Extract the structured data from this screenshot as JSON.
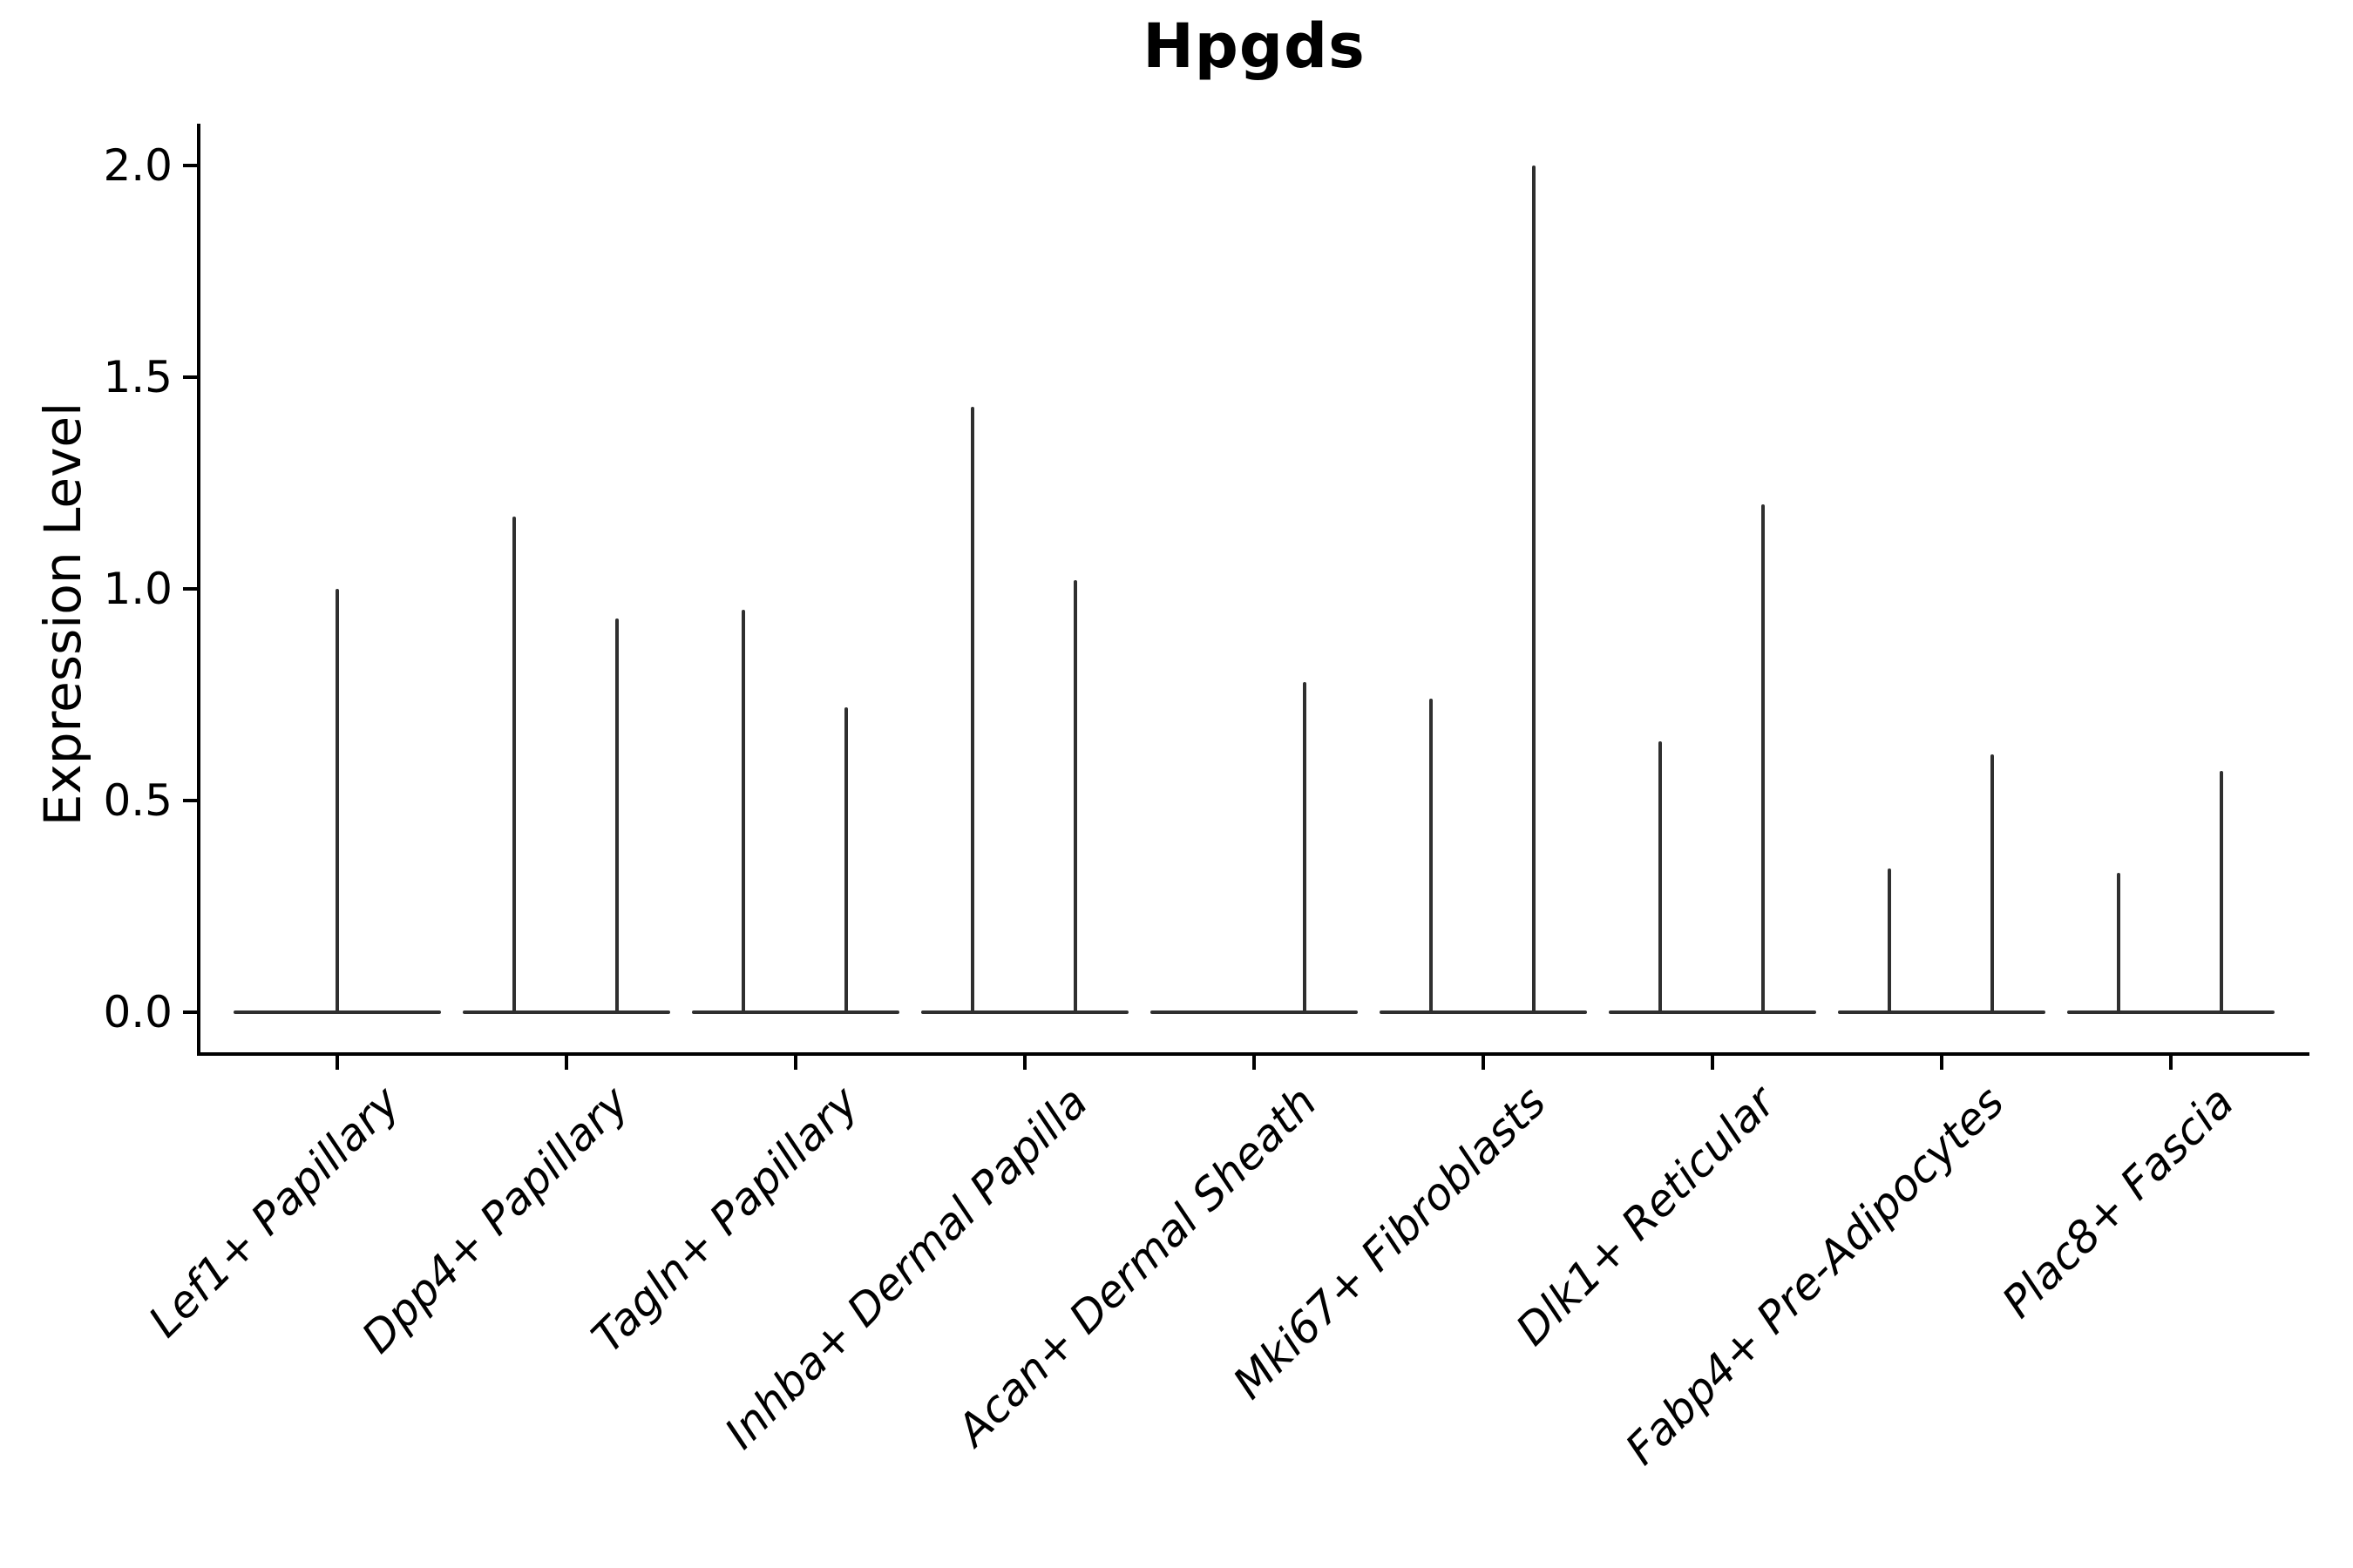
{
  "figure": {
    "background": "#ffffff"
  },
  "chart_data": {
    "type": "violin",
    "title": "Hpgds",
    "ylabel": "Expression Level",
    "xlabel": "",
    "grid": false,
    "legend": null,
    "ylim": [
      -0.1,
      2.1
    ],
    "yticks": [
      {
        "value": 0.0,
        "label": "0.0"
      },
      {
        "value": 0.5,
        "label": "0.5"
      },
      {
        "value": 1.0,
        "label": "1.0"
      },
      {
        "value": 1.5,
        "label": "1.5"
      },
      {
        "value": 2.0,
        "label": "2.0"
      }
    ],
    "categories": [
      {
        "label": "Lef1+ Papillary",
        "spikes": [
          {
            "pos": "center",
            "value": 1.0
          }
        ]
      },
      {
        "label": "Dpp4+ Papillary",
        "spikes": [
          {
            "pos": "left",
            "value": 1.17
          },
          {
            "pos": "right",
            "value": 0.93
          }
        ]
      },
      {
        "label": "Tagln+ Papillary",
        "spikes": [
          {
            "pos": "left",
            "value": 0.95
          },
          {
            "pos": "right",
            "value": 0.72
          }
        ]
      },
      {
        "label": "Inhba+ Dermal Papilla",
        "spikes": [
          {
            "pos": "left",
            "value": 1.43
          },
          {
            "pos": "right",
            "value": 1.02
          }
        ]
      },
      {
        "label": "Acan+ Dermal Sheath",
        "spikes": [
          {
            "pos": "right",
            "value": 0.78
          }
        ]
      },
      {
        "label": "Mki67+ Fibroblasts",
        "spikes": [
          {
            "pos": "left",
            "value": 0.74
          },
          {
            "pos": "right",
            "value": 2.0
          }
        ]
      },
      {
        "label": "Dlk1+ Reticular",
        "spikes": [
          {
            "pos": "left",
            "value": 0.64
          },
          {
            "pos": "right",
            "value": 1.2
          }
        ]
      },
      {
        "label": "Fabp4+ Pre-Adipocytes",
        "spikes": [
          {
            "pos": "left",
            "value": 0.34
          },
          {
            "pos": "right",
            "value": 0.61
          }
        ]
      },
      {
        "label": "Plac8+ Fascia",
        "spikes": [
          {
            "pos": "left",
            "value": 0.33
          },
          {
            "pos": "right",
            "value": 0.57
          }
        ]
      }
    ],
    "colors": {
      "violin_line": "#2f2f2f",
      "axis": "#000000",
      "text": "#000000"
    }
  }
}
